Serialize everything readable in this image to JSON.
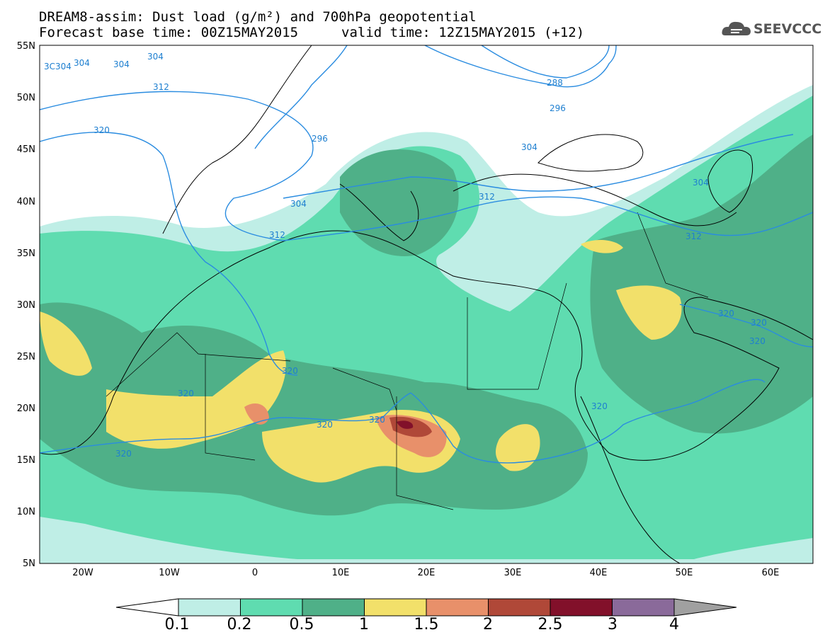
{
  "header": {
    "title_line1": "DREAM8-assim: Dust load (g/m²) and 700hPa geopotential",
    "title_line2": "Forecast base time: 00Z15MAY2015",
    "title_valid": "valid time: 12Z15MAY2015 (+12)",
    "logo_text": "SEEVCCC"
  },
  "axes": {
    "lat_labels": [
      "55N",
      "50N",
      "45N",
      "40N",
      "35N",
      "30N",
      "25N",
      "20N",
      "15N",
      "10N",
      "5N"
    ],
    "lon_labels": [
      "20W",
      "10W",
      "0",
      "10E",
      "20E",
      "30E",
      "40E",
      "50E",
      "60E"
    ]
  },
  "contours": {
    "geopotential_labels": [
      "3C304",
      "304",
      "304",
      "304",
      "312",
      "320",
      "296",
      "288",
      "296",
      "304",
      "304",
      "312",
      "312",
      "304",
      "312",
      "320",
      "320",
      "320",
      "320",
      "320",
      "320",
      "320",
      "320",
      "320"
    ]
  },
  "colorbar": {
    "labels": [
      "0.1",
      "0.2",
      "0.5",
      "1",
      "1.5",
      "2",
      "2.5",
      "3",
      "4"
    ],
    "colors": [
      "#bfeee6",
      "#5fdcb0",
      "#4fb088",
      "#f2e06a",
      "#e8906a",
      "#b04838",
      "#82102a",
      "#8a6a9a",
      "#a0a0a0"
    ]
  }
}
